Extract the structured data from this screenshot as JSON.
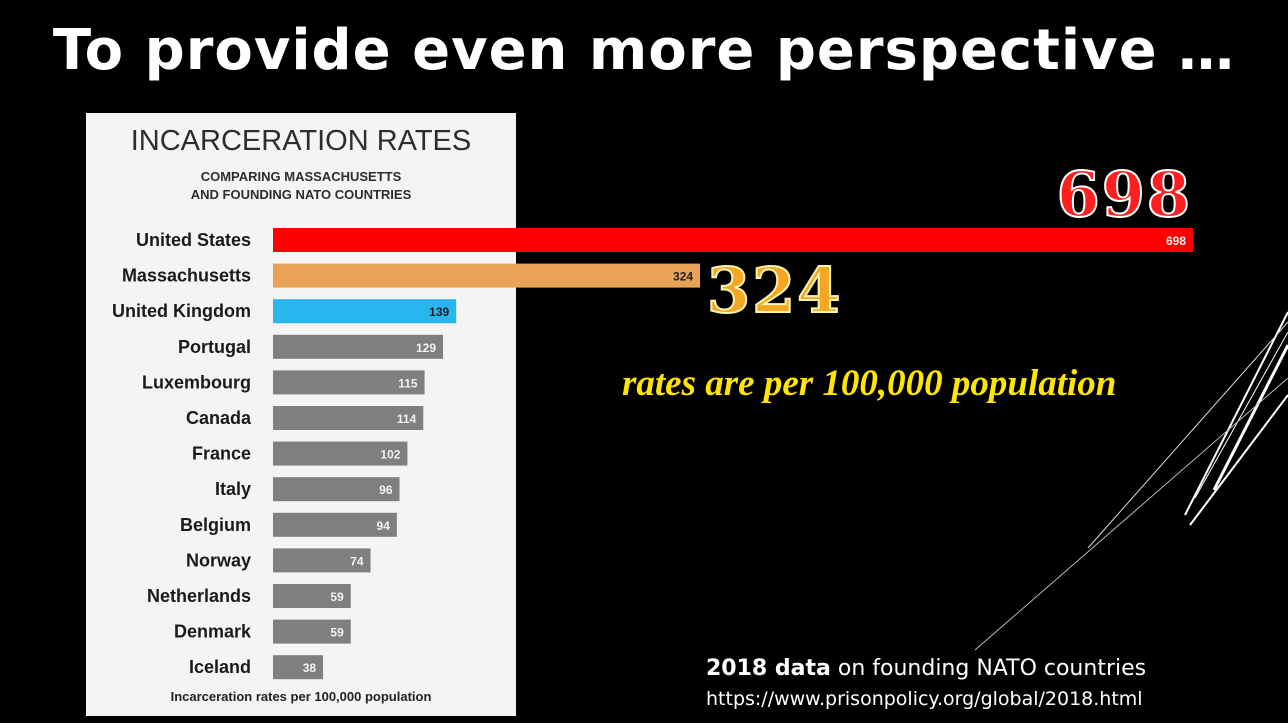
{
  "slide": {
    "title": "To provide even more perspective …",
    "highlight_us": "698",
    "highlight_ma": "324",
    "rates_note": "rates are per 100,000 population",
    "source_bold": "2018 data",
    "source_text": "on founding NATO countries",
    "source_url": "https://www.prisonpolicy.org/global/2018.html"
  },
  "chart_data": {
    "type": "bar",
    "orientation": "horizontal",
    "title": "INCARCERATION RATES",
    "subtitle_line1": "COMPARING MASSACHUSETTS",
    "subtitle_line2": "AND FOUNDING NATO COUNTRIES",
    "footer": "Incarceration rates per 100,000 population",
    "categories": [
      "United States",
      "Massachusetts",
      "United Kingdom",
      "Portugal",
      "Luxembourg",
      "Canada",
      "France",
      "Italy",
      "Belgium",
      "Norway",
      "Netherlands",
      "Denmark",
      "Iceland"
    ],
    "values": [
      698,
      324,
      139,
      129,
      115,
      114,
      102,
      96,
      94,
      74,
      59,
      59,
      38
    ],
    "value_labels": [
      "698",
      "324",
      "139",
      "129",
      "115",
      "114",
      "102",
      "96",
      "94",
      "74",
      "59",
      "59",
      "38"
    ],
    "colors": [
      "#ff0000",
      "#e8a357",
      "#27b6ee",
      "#7f7f7f",
      "#7f7f7f",
      "#7f7f7f",
      "#7f7f7f",
      "#7f7f7f",
      "#7f7f7f",
      "#7f7f7f",
      "#7f7f7f",
      "#7f7f7f",
      "#7f7f7f"
    ],
    "xlim": [
      0,
      698
    ],
    "grid": false
  }
}
